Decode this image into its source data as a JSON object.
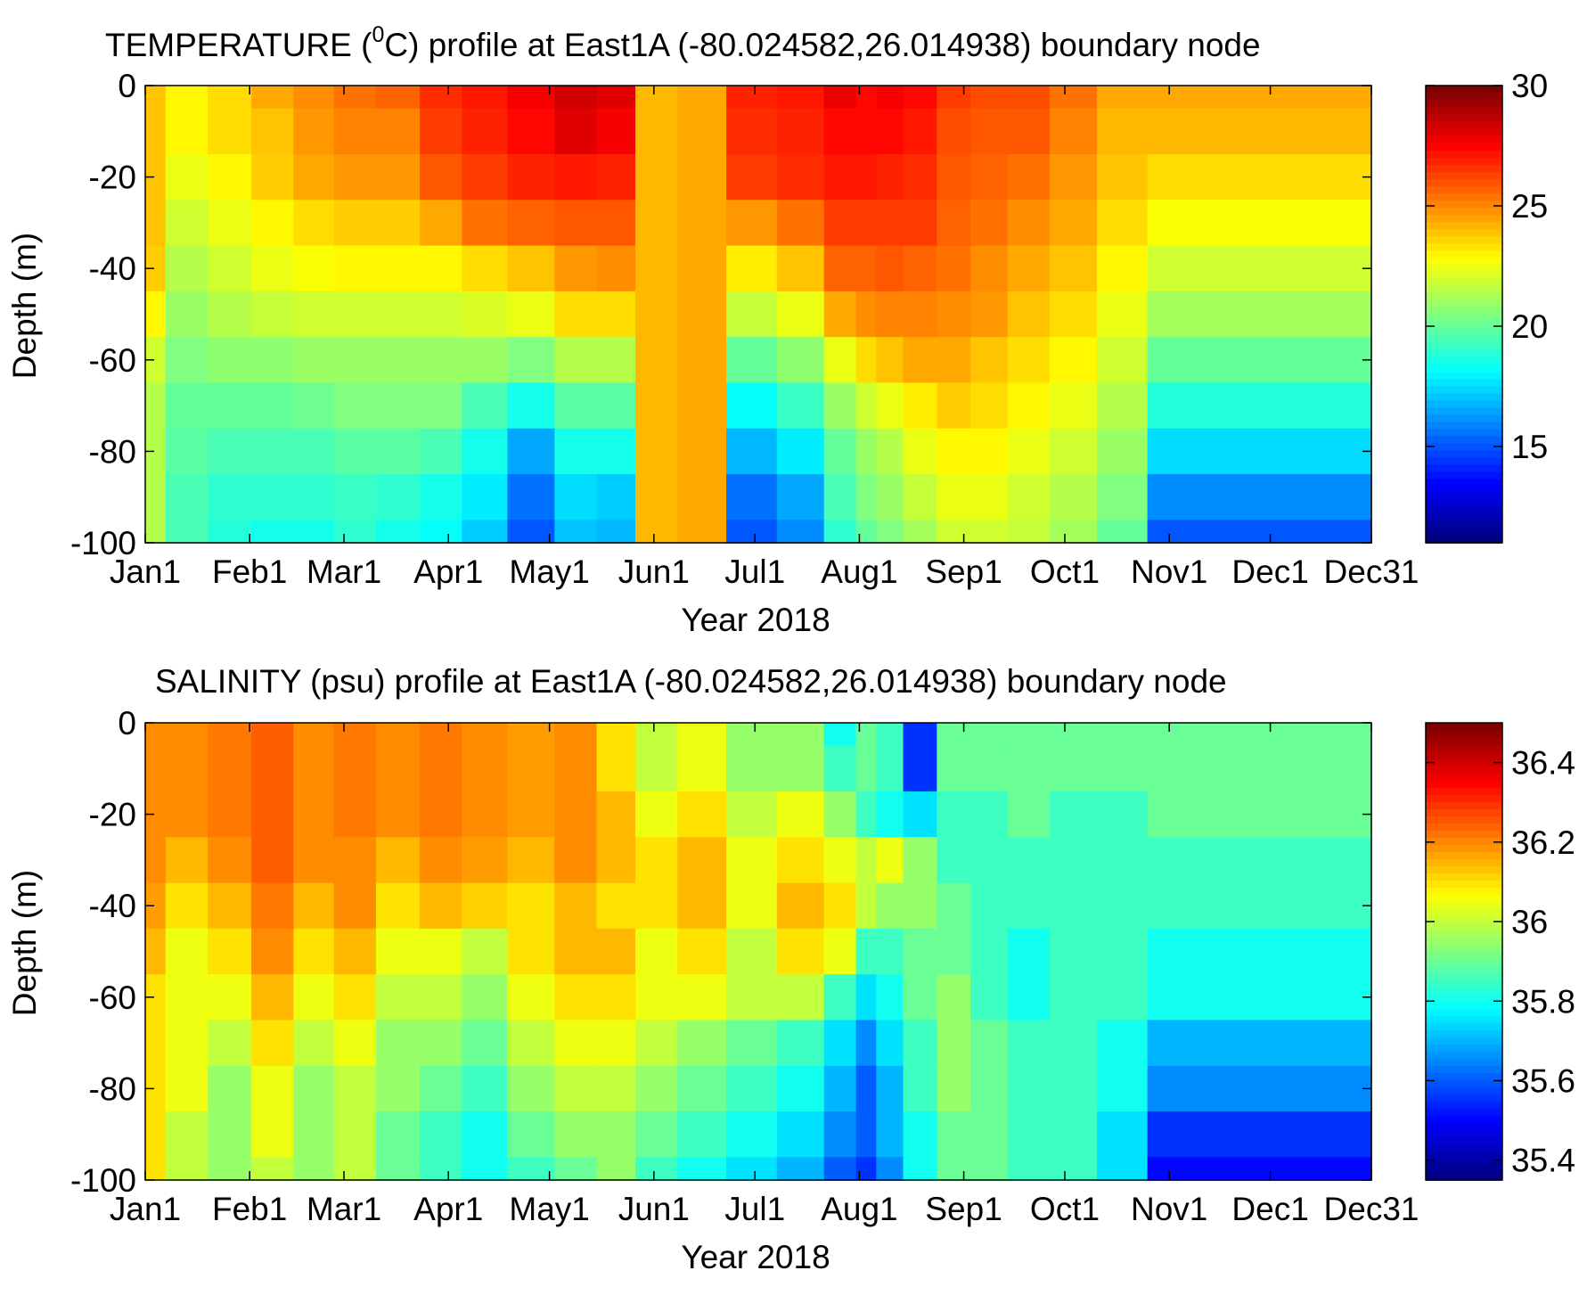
{
  "chart_data": [
    {
      "type": "heatmap",
      "title_main": "TEMPERATURE (",
      "title_sup": "0",
      "title_rest": "C) profile at  East1A (-80.024582,26.014938) boundary node",
      "xlabel": "Year 2018",
      "ylabel": "Depth (m)",
      "x_ticks": [
        "Jan1",
        "Feb1",
        "Mar1",
        "Apr1",
        "May1",
        "Jun1",
        "Jul1",
        "Aug1",
        "Sep1",
        "Oct1",
        "Nov1",
        "Dec1",
        "Dec31"
      ],
      "x_tick_days": [
        0,
        31,
        59,
        90,
        120,
        151,
        181,
        212,
        243,
        273,
        304,
        334,
        364
      ],
      "xlim": [
        0,
        364
      ],
      "y_ticks": [
        0,
        -20,
        -40,
        -60,
        -80,
        -100
      ],
      "ylim": [
        -100,
        0
      ],
      "colorbar": {
        "min": 11,
        "max": 30,
        "ticks": [
          "30",
          "25",
          "20",
          "15"
        ],
        "tick_values": [
          30,
          25,
          20,
          15
        ]
      },
      "colormap": "jet",
      "depths": [
        0,
        -10,
        -20,
        -30,
        -40,
        -50,
        -60,
        -70,
        -80,
        -90,
        -100
      ],
      "days": [
        0,
        10,
        20,
        31,
        45,
        59,
        75,
        90,
        105,
        120,
        135,
        151,
        160,
        170,
        181,
        195,
        212,
        220,
        225,
        230,
        243,
        255,
        265,
        273,
        285,
        304,
        320,
        334,
        350,
        364
      ],
      "values": [
        [
          24,
          23,
          23.5,
          24.5,
          25,
          25.5,
          25.8,
          26.8,
          27.2,
          27.8,
          28.5,
          28.2,
          24.2,
          24.5,
          27,
          27.2,
          28,
          27.5,
          27.8,
          27.5,
          26.5,
          26.2,
          26.2,
          25.5,
          24.5,
          24.5
        ],
        [
          24,
          23,
          23.5,
          24,
          24.8,
          25.2,
          25.2,
          26.5,
          27,
          27.5,
          28.2,
          27.8,
          24.2,
          24.5,
          26.8,
          27,
          27.5,
          27.5,
          27.5,
          27.2,
          26.2,
          26,
          26,
          25.2,
          24.2,
          24.2
        ],
        [
          24,
          22.5,
          23,
          23.8,
          24.5,
          24.8,
          24.8,
          26,
          26.5,
          27,
          27.2,
          27,
          24.2,
          24.5,
          26.5,
          26.8,
          27.2,
          27.2,
          27,
          26.8,
          26,
          25.8,
          25.5,
          24.8,
          24,
          23.5
        ],
        [
          24,
          22,
          22.5,
          23,
          23.5,
          23.8,
          23.8,
          24.5,
          25.5,
          25.8,
          26,
          26,
          24.2,
          24.5,
          24.8,
          25.5,
          26.5,
          26.5,
          26.5,
          26.5,
          25.8,
          25.5,
          25,
          24.5,
          23.5,
          22.8
        ],
        [
          23.8,
          21.5,
          22,
          22.5,
          22.8,
          23,
          23,
          23,
          23.5,
          24,
          24.8,
          25,
          24.2,
          24.5,
          23.2,
          24,
          25.8,
          25.8,
          26,
          25.8,
          25.5,
          25,
          24.5,
          24,
          23,
          22
        ],
        [
          23,
          21,
          21.5,
          21.8,
          22,
          22,
          22,
          22,
          22.2,
          22.5,
          23.5,
          23.5,
          24.2,
          24.5,
          21.8,
          22.5,
          24.5,
          25,
          25.2,
          25.2,
          25,
          24.8,
          24,
          23.5,
          22.5,
          21.2
        ],
        [
          22,
          20.5,
          20.8,
          20.8,
          21,
          21,
          21,
          21,
          21,
          20.5,
          21.5,
          21.5,
          24.2,
          24.5,
          20,
          20.8,
          22.5,
          23.5,
          24,
          24.5,
          24.5,
          24,
          23.5,
          23,
          22,
          20
        ],
        [
          21.5,
          20,
          20,
          20,
          20.2,
          20.5,
          20.5,
          20.5,
          19.5,
          18.5,
          19.8,
          19.8,
          24.2,
          24.5,
          18.2,
          19.2,
          21,
          22,
          22.5,
          23.2,
          23.8,
          23.5,
          23,
          22.5,
          21.5,
          18.8
        ],
        [
          21.5,
          19.8,
          19.5,
          19.5,
          19.5,
          19.8,
          19.8,
          19.5,
          18.5,
          16.5,
          18.5,
          18.5,
          24.2,
          24.5,
          16.8,
          17.8,
          20,
          21,
          21.5,
          22.5,
          23,
          23,
          22.5,
          22,
          21,
          17.5
        ],
        [
          21.5,
          19.5,
          19,
          19,
          19,
          19.2,
          19,
          18.5,
          17.8,
          15.5,
          17.5,
          17.2,
          24.2,
          24.5,
          15.5,
          16.5,
          19.5,
          20.5,
          21,
          21.8,
          22.5,
          22.5,
          22,
          21.5,
          20.5,
          16
        ],
        [
          21.5,
          19.5,
          18.8,
          18.5,
          18.5,
          19,
          18.5,
          18.2,
          17.2,
          15,
          17,
          16.8,
          24.2,
          24.5,
          15,
          16,
          19,
          20,
          20.5,
          21.2,
          22,
          22,
          21.8,
          21.2,
          20,
          15
        ]
      ],
      "value_days": [
        0,
        12,
        25,
        38,
        50,
        62,
        75,
        88,
        100,
        115,
        128,
        140,
        151,
        165,
        180,
        195,
        208,
        214,
        220,
        230,
        240,
        250,
        262,
        275,
        290,
        305
      ]
    },
    {
      "type": "heatmap",
      "title_main": "SALINITY (psu) profile at  East1A (-80.024582,26.014938) boundary node",
      "xlabel": "Year 2018",
      "ylabel": "Depth (m)",
      "x_ticks": [
        "Jan1",
        "Feb1",
        "Mar1",
        "Apr1",
        "May1",
        "Jun1",
        "Jul1",
        "Aug1",
        "Sep1",
        "Oct1",
        "Nov1",
        "Dec1",
        "Dec31"
      ],
      "x_tick_days": [
        0,
        31,
        59,
        90,
        120,
        151,
        181,
        212,
        243,
        273,
        304,
        334,
        364
      ],
      "xlim": [
        0,
        364
      ],
      "y_ticks": [
        0,
        -20,
        -40,
        -60,
        -80,
        -100
      ],
      "ylim": [
        -100,
        0
      ],
      "colorbar": {
        "min": 35.35,
        "max": 36.5,
        "ticks": [
          "36.4",
          "36.2",
          "36",
          "35.8",
          "35.6",
          "35.4"
        ],
        "tick_values": [
          36.4,
          36.2,
          36.0,
          35.8,
          35.6,
          35.4
        ]
      },
      "colormap": "jet",
      "depths": [
        0,
        -10,
        -20,
        -30,
        -40,
        -50,
        -60,
        -70,
        -80,
        -90,
        -100
      ],
      "value_days": [
        0,
        12,
        25,
        38,
        50,
        62,
        75,
        88,
        100,
        115,
        128,
        140,
        151,
        165,
        180,
        195,
        208,
        214,
        220,
        230,
        240,
        250,
        262,
        275,
        290,
        305
      ],
      "values": [
        [
          36.2,
          36.2,
          36.22,
          36.25,
          36.2,
          36.22,
          36.2,
          36.22,
          36.2,
          36.18,
          36.2,
          36.1,
          36.0,
          36.05,
          35.95,
          35.95,
          35.8,
          35.9,
          35.85,
          35.55,
          35.9,
          35.9,
          35.9,
          35.9,
          35.9,
          35.9
        ],
        [
          36.2,
          36.2,
          36.22,
          36.25,
          36.2,
          36.22,
          36.2,
          36.22,
          36.2,
          36.18,
          36.2,
          36.1,
          36.0,
          36.05,
          35.95,
          35.95,
          35.85,
          35.9,
          35.85,
          35.55,
          35.9,
          35.9,
          35.9,
          35.9,
          35.9,
          35.9
        ],
        [
          36.2,
          36.2,
          36.22,
          36.25,
          36.2,
          36.22,
          36.2,
          36.22,
          36.2,
          36.18,
          36.2,
          36.15,
          36.05,
          36.1,
          36.0,
          36.05,
          35.95,
          35.85,
          35.8,
          35.75,
          35.85,
          35.85,
          35.9,
          35.85,
          35.85,
          35.9
        ],
        [
          36.2,
          36.15,
          36.2,
          36.25,
          36.2,
          36.2,
          36.15,
          36.2,
          36.18,
          36.15,
          36.2,
          36.15,
          36.1,
          36.15,
          36.05,
          36.1,
          36.05,
          36.0,
          36.05,
          35.95,
          35.85,
          35.85,
          35.85,
          35.85,
          35.85,
          35.85
        ],
        [
          36.18,
          36.1,
          36.15,
          36.22,
          36.15,
          36.2,
          36.1,
          36.15,
          36.12,
          36.1,
          36.15,
          36.1,
          36.1,
          36.15,
          36.05,
          36.15,
          36.1,
          36.0,
          35.95,
          35.95,
          35.9,
          35.85,
          35.85,
          35.85,
          35.85,
          35.85
        ],
        [
          36.15,
          36.05,
          36.1,
          36.2,
          36.1,
          36.15,
          36.05,
          36.05,
          36.0,
          36.1,
          36.15,
          36.15,
          36.05,
          36.1,
          36.0,
          36.1,
          36.05,
          35.85,
          35.85,
          35.9,
          35.9,
          35.85,
          35.8,
          35.85,
          35.85,
          35.8
        ],
        [
          36.1,
          36.05,
          36.05,
          36.15,
          36.05,
          36.1,
          36.0,
          36.0,
          35.95,
          36.05,
          36.1,
          36.1,
          36.05,
          36.05,
          36.0,
          36.0,
          35.85,
          35.75,
          35.8,
          35.9,
          35.95,
          35.85,
          35.8,
          35.85,
          35.85,
          35.8
        ],
        [
          36.1,
          36.05,
          36.0,
          36.1,
          36.0,
          36.05,
          35.95,
          35.95,
          35.9,
          36.0,
          36.05,
          36.05,
          36.0,
          35.95,
          35.9,
          35.85,
          35.75,
          35.65,
          35.75,
          35.85,
          35.95,
          35.9,
          35.85,
          35.85,
          35.8,
          35.7
        ],
        [
          36.1,
          36.05,
          35.95,
          36.05,
          35.95,
          36.0,
          35.95,
          35.9,
          35.85,
          35.95,
          36.0,
          36.0,
          35.95,
          35.9,
          35.85,
          35.8,
          35.7,
          35.6,
          35.7,
          35.85,
          35.95,
          35.9,
          35.85,
          35.85,
          35.8,
          35.65
        ],
        [
          36.1,
          36.0,
          35.95,
          36.05,
          35.95,
          36.0,
          35.9,
          35.85,
          35.8,
          35.9,
          35.95,
          35.95,
          35.9,
          35.85,
          35.8,
          35.75,
          35.65,
          35.6,
          35.7,
          35.8,
          35.9,
          35.9,
          35.85,
          35.85,
          35.75,
          35.55
        ],
        [
          36.1,
          36.0,
          35.95,
          36.0,
          35.95,
          36.0,
          35.9,
          35.85,
          35.8,
          35.85,
          35.9,
          35.95,
          35.85,
          35.8,
          35.75,
          35.7,
          35.6,
          35.55,
          35.65,
          35.8,
          35.9,
          35.9,
          35.85,
          35.85,
          35.75,
          35.5
        ]
      ]
    }
  ]
}
